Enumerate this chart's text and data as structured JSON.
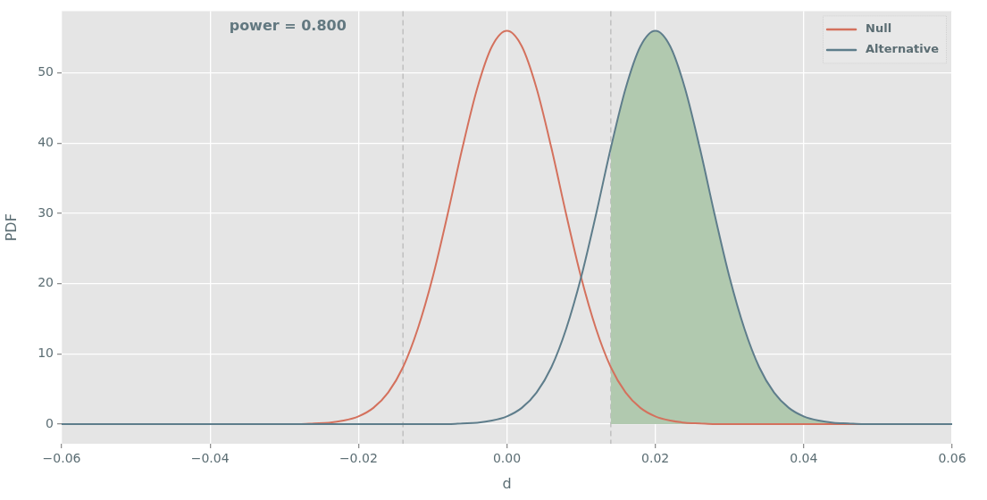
{
  "chart_data": {
    "type": "line",
    "xlabel": "d",
    "ylabel": "PDF",
    "annotations": [
      "power = 0.800"
    ],
    "xlim": [
      -0.06,
      0.06
    ],
    "xticks": [
      {
        "value": -0.06,
        "label": "−0.06"
      },
      {
        "value": -0.04,
        "label": "−0.04"
      },
      {
        "value": -0.02,
        "label": "−0.02"
      },
      {
        "value": 0,
        "label": "0.00"
      },
      {
        "value": 0.02,
        "label": "0.02"
      },
      {
        "value": 0.04,
        "label": "0.04"
      },
      {
        "value": 0.06,
        "label": "0.06"
      }
    ],
    "ylim": [
      -2.8,
      58.8
    ],
    "yticks": [
      0,
      10,
      20,
      30,
      40,
      50
    ],
    "grid": true,
    "legend": "top right",
    "marker": "none",
    "ref_lines": [
      {
        "axis": "x",
        "value": -0.014,
        "color": "#c2c2c2",
        "line_style": "dashed"
      },
      {
        "axis": "x",
        "value": 0.014,
        "color": "#c2c2c2",
        "line_style": "dashed"
      }
    ],
    "series": [
      {
        "name": "Null",
        "color": "#d4715d",
        "x": [
          -0.03,
          -0.028,
          -0.026,
          -0.024,
          -0.022,
          -0.02,
          -0.018,
          -0.016,
          -0.014,
          -0.012,
          -0.01,
          -0.008,
          -0.006,
          -0.004,
          -0.002,
          0,
          0.002,
          0.004,
          0.006,
          0.008,
          0.01,
          0.012,
          0.014,
          0.016,
          0.018,
          0.02,
          0.022,
          0.024,
          0.026,
          0.028,
          0.03,
          0.032,
          0.06
        ],
        "values": [
          0,
          0,
          0.1,
          0.2,
          0.5,
          1.1,
          2.3,
          4.5,
          8.1,
          13.6,
          20.9,
          29.8,
          39.3,
          47.8,
          53.8,
          56,
          53.8,
          47.8,
          39.3,
          29.8,
          20.9,
          13.6,
          8.1,
          4.5,
          2.3,
          1.1,
          0.5,
          0.2,
          0.1,
          0,
          0,
          0,
          0
        ]
      },
      {
        "name": "Alternative",
        "color": "#5e7d8b",
        "x": [
          -0.06,
          -0.012,
          -0.01,
          -0.008,
          -0.006,
          -0.004,
          -0.002,
          0,
          0.002,
          0.004,
          0.006,
          0.008,
          0.01,
          0.012,
          0.014,
          0.016,
          0.018,
          0.02,
          0.022,
          0.024,
          0.026,
          0.028,
          0.03,
          0.032,
          0.034,
          0.036,
          0.038,
          0.04,
          0.042,
          0.044,
          0.046,
          0.048,
          0.05,
          0.052,
          0.06
        ],
        "values": [
          0,
          0,
          0,
          0,
          0.1,
          0.2,
          0.5,
          1.1,
          2.3,
          4.5,
          8.1,
          13.6,
          20.9,
          29.8,
          39.3,
          47.8,
          53.8,
          56,
          53.8,
          47.8,
          39.3,
          29.8,
          20.9,
          13.6,
          8.1,
          4.5,
          2.3,
          1.1,
          0.5,
          0.2,
          0.1,
          0,
          0,
          0,
          0
        ]
      },
      {
        "type": "area",
        "color": "#b1c9af",
        "x": [
          0.014,
          0.016,
          0.018,
          0.02,
          0.022,
          0.024,
          0.026,
          0.028,
          0.03,
          0.032,
          0.034,
          0.036,
          0.038,
          0.04,
          0.042,
          0.044,
          0.046,
          0.048,
          0.05,
          0.052,
          0.06
        ],
        "values": [
          39.3,
          47.8,
          53.8,
          56,
          53.8,
          47.8,
          39.3,
          29.8,
          20.9,
          13.6,
          8.1,
          4.5,
          2.3,
          1.1,
          0.5,
          0.2,
          0.1,
          0,
          0,
          0,
          0
        ]
      }
    ]
  }
}
